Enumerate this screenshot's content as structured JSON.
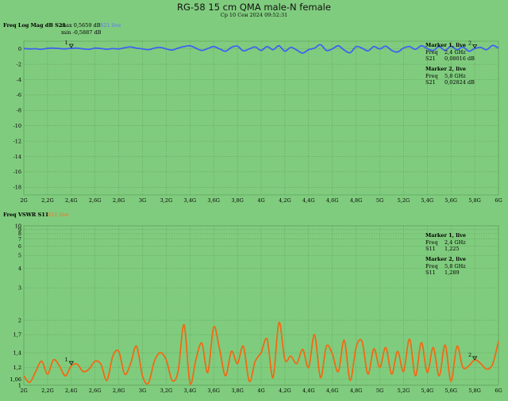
{
  "header": {
    "title": "RG-58 15 cm QMA male-N female",
    "subtitle": "Ср 10 Сен 2024 09:52:31"
  },
  "chart_data": [
    {
      "type": "line",
      "title": "Freq Log Mag dB S21",
      "legend": "S21 live",
      "stats": {
        "max": "max 0,5659 dB",
        "min": "min -0,5887 dB"
      },
      "y_ticks": [
        "0",
        "-2",
        "-4",
        "-6",
        "-8",
        "-10",
        "-12",
        "-14",
        "-16",
        "-18"
      ],
      "x_ticks": [
        "2G",
        "2,2G",
        "2,4G",
        "2,6G",
        "2,8G",
        "3G",
        "3,2G",
        "3,4G",
        "3,6G",
        "3,8G",
        "4G",
        "4,2G",
        "4,4G",
        "4,6G",
        "4,8G",
        "5G",
        "5,2G",
        "5,4G",
        "5,6G",
        "5,8G",
        "6G"
      ],
      "xlim": [
        2.0,
        6.0
      ],
      "ylim": [
        -19,
        1
      ],
      "grid": true,
      "color": "#3f62f0",
      "series": [
        {
          "name": "S21 live",
          "x": [
            2.0,
            2.05,
            2.1,
            2.15,
            2.2,
            2.25,
            2.3,
            2.35,
            2.4,
            2.45,
            2.5,
            2.55,
            2.6,
            2.65,
            2.7,
            2.75,
            2.8,
            2.85,
            2.9,
            2.95,
            3.0,
            3.05,
            3.1,
            3.15,
            3.2,
            3.25,
            3.3,
            3.35,
            3.4,
            3.45,
            3.5,
            3.55,
            3.6,
            3.65,
            3.7,
            3.75,
            3.8,
            3.85,
            3.9,
            3.95,
            4.0,
            4.05,
            4.1,
            4.15,
            4.2,
            4.25,
            4.3,
            4.35,
            4.4,
            4.45,
            4.5,
            4.55,
            4.6,
            4.65,
            4.7,
            4.75,
            4.8,
            4.85,
            4.9,
            4.95,
            5.0,
            5.05,
            5.1,
            5.15,
            5.2,
            5.25,
            5.3,
            5.35,
            5.4,
            5.45,
            5.5,
            5.55,
            5.6,
            5.65,
            5.7,
            5.75,
            5.8,
            5.85,
            5.9,
            5.95,
            6.0
          ],
          "y": [
            0.05,
            0.0,
            0.02,
            -0.05,
            0.08,
            0.1,
            0.05,
            0.0,
            0.08,
            0.1,
            0.0,
            -0.05,
            0.1,
            0.05,
            -0.05,
            0.05,
            0.0,
            0.15,
            0.25,
            0.1,
            0.0,
            -0.1,
            0.1,
            0.2,
            0.0,
            -0.15,
            0.1,
            0.3,
            0.4,
            0.1,
            -0.2,
            0.05,
            0.3,
            0.0,
            -0.3,
            0.2,
            0.35,
            -0.25,
            0.0,
            0.25,
            -0.2,
            0.3,
            -0.1,
            0.4,
            -0.3,
            0.2,
            -0.15,
            -0.55,
            -0.1,
            0.1,
            0.55,
            -0.2,
            0.0,
            0.4,
            -0.15,
            -0.5,
            0.3,
            0.1,
            -0.25,
            0.3,
            0.0,
            0.35,
            -0.2,
            -0.4,
            0.1,
            0.3,
            -0.05,
            0.4,
            0.05,
            -0.2,
            0.3,
            -0.2,
            0.35,
            -0.1,
            0.25,
            -0.3,
            0.05,
            0.2,
            -0.1,
            0.45,
            0.1
          ]
        }
      ],
      "markers": [
        {
          "label": "1",
          "x": 2.4,
          "y": 0.08016
        },
        {
          "label": "2",
          "x": 5.8,
          "y": 0.02824
        }
      ],
      "marker_panel": [
        {
          "title": "Marker 1, live",
          "freq_key": "Freq",
          "freq": "2,4 GHz",
          "val_key": "S21",
          "val": "0,08016 dB"
        },
        {
          "title": "Marker 2, live",
          "freq_key": "Freq",
          "freq": "5,8 GHz",
          "val_key": "S21",
          "val": "0,02824 dB"
        }
      ]
    },
    {
      "type": "line",
      "title": "Freq VSWR S11",
      "legend": "S11 live",
      "y_ticks": [
        "10",
        "9",
        "8",
        "7",
        "6",
        "5",
        "4",
        "3",
        "2",
        "1,7",
        "1,4",
        "1,2",
        "1,06",
        "1"
      ],
      "y_tick_values": [
        10,
        9,
        8,
        7,
        6,
        5,
        4,
        3,
        2,
        1.7,
        1.4,
        1.2,
        1.06,
        1
      ],
      "x_ticks": [
        "2G",
        "2,2G",
        "2,4G",
        "2,6G",
        "2,8G",
        "3G",
        "3,2G",
        "3,4G",
        "3,6G",
        "3,8G",
        "4G",
        "4,2G",
        "4,4G",
        "4,6G",
        "4,8G",
        "5G",
        "5,2G",
        "5,4G",
        "5,6G",
        "5,8G",
        "6G"
      ],
      "xlim": [
        2.0,
        6.0
      ],
      "ylim": [
        1,
        10
      ],
      "y_scale": "reflection (Γ = (VSWR−1)/(VSWR+1))",
      "grid": true,
      "color": "#f06a14",
      "series": [
        {
          "name": "S11 live",
          "x": [
            2.0,
            2.05,
            2.1,
            2.15,
            2.2,
            2.25,
            2.3,
            2.35,
            2.4,
            2.45,
            2.5,
            2.55,
            2.6,
            2.65,
            2.7,
            2.75,
            2.8,
            2.85,
            2.9,
            2.95,
            3.0,
            3.05,
            3.1,
            3.15,
            3.2,
            3.25,
            3.3,
            3.35,
            3.4,
            3.45,
            3.5,
            3.55,
            3.6,
            3.65,
            3.7,
            3.75,
            3.8,
            3.85,
            3.9,
            3.95,
            4.0,
            4.05,
            4.1,
            4.15,
            4.2,
            4.25,
            4.3,
            4.35,
            4.4,
            4.45,
            4.5,
            4.55,
            4.6,
            4.65,
            4.7,
            4.75,
            4.8,
            4.85,
            4.9,
            4.95,
            5.0,
            5.05,
            5.1,
            5.15,
            5.2,
            5.25,
            5.3,
            5.35,
            5.4,
            5.45,
            5.5,
            5.55,
            5.6,
            5.65,
            5.7,
            5.75,
            5.8,
            5.85,
            5.9,
            5.95,
            6.0
          ],
          "y": [
            1.1,
            1.03,
            1.15,
            1.28,
            1.12,
            1.3,
            1.22,
            1.1,
            1.22,
            1.24,
            1.15,
            1.18,
            1.28,
            1.24,
            1.05,
            1.35,
            1.42,
            1.12,
            1.25,
            1.5,
            1.1,
            1.02,
            1.28,
            1.4,
            1.3,
            1.05,
            1.15,
            1.9,
            1.02,
            1.3,
            1.55,
            1.14,
            1.85,
            1.45,
            1.1,
            1.42,
            1.25,
            1.5,
            1.04,
            1.28,
            1.4,
            1.62,
            1.08,
            1.95,
            1.3,
            1.35,
            1.25,
            1.45,
            1.2,
            1.7,
            1.08,
            1.5,
            1.38,
            1.15,
            1.6,
            1.05,
            1.48,
            1.58,
            1.12,
            1.46,
            1.2,
            1.48,
            1.12,
            1.42,
            1.15,
            1.62,
            1.1,
            1.56,
            1.14,
            1.48,
            1.1,
            1.52,
            1.04,
            1.5,
            1.2,
            1.22,
            1.3,
            1.25,
            1.18,
            1.24,
            1.58
          ]
        }
      ],
      "markers": [
        {
          "label": "1",
          "x": 2.4,
          "y": 1.225
        },
        {
          "label": "2",
          "x": 5.8,
          "y": 1.289
        }
      ],
      "marker_panel": [
        {
          "title": "Marker 1, live",
          "freq_key": "Freq",
          "freq": "2,4 GHz",
          "val_key": "S11",
          "val": "1,225"
        },
        {
          "title": "Marker 2, live",
          "freq_key": "Freq",
          "freq": "5,8 GHz",
          "val_key": "S11",
          "val": "1,289"
        }
      ]
    }
  ]
}
